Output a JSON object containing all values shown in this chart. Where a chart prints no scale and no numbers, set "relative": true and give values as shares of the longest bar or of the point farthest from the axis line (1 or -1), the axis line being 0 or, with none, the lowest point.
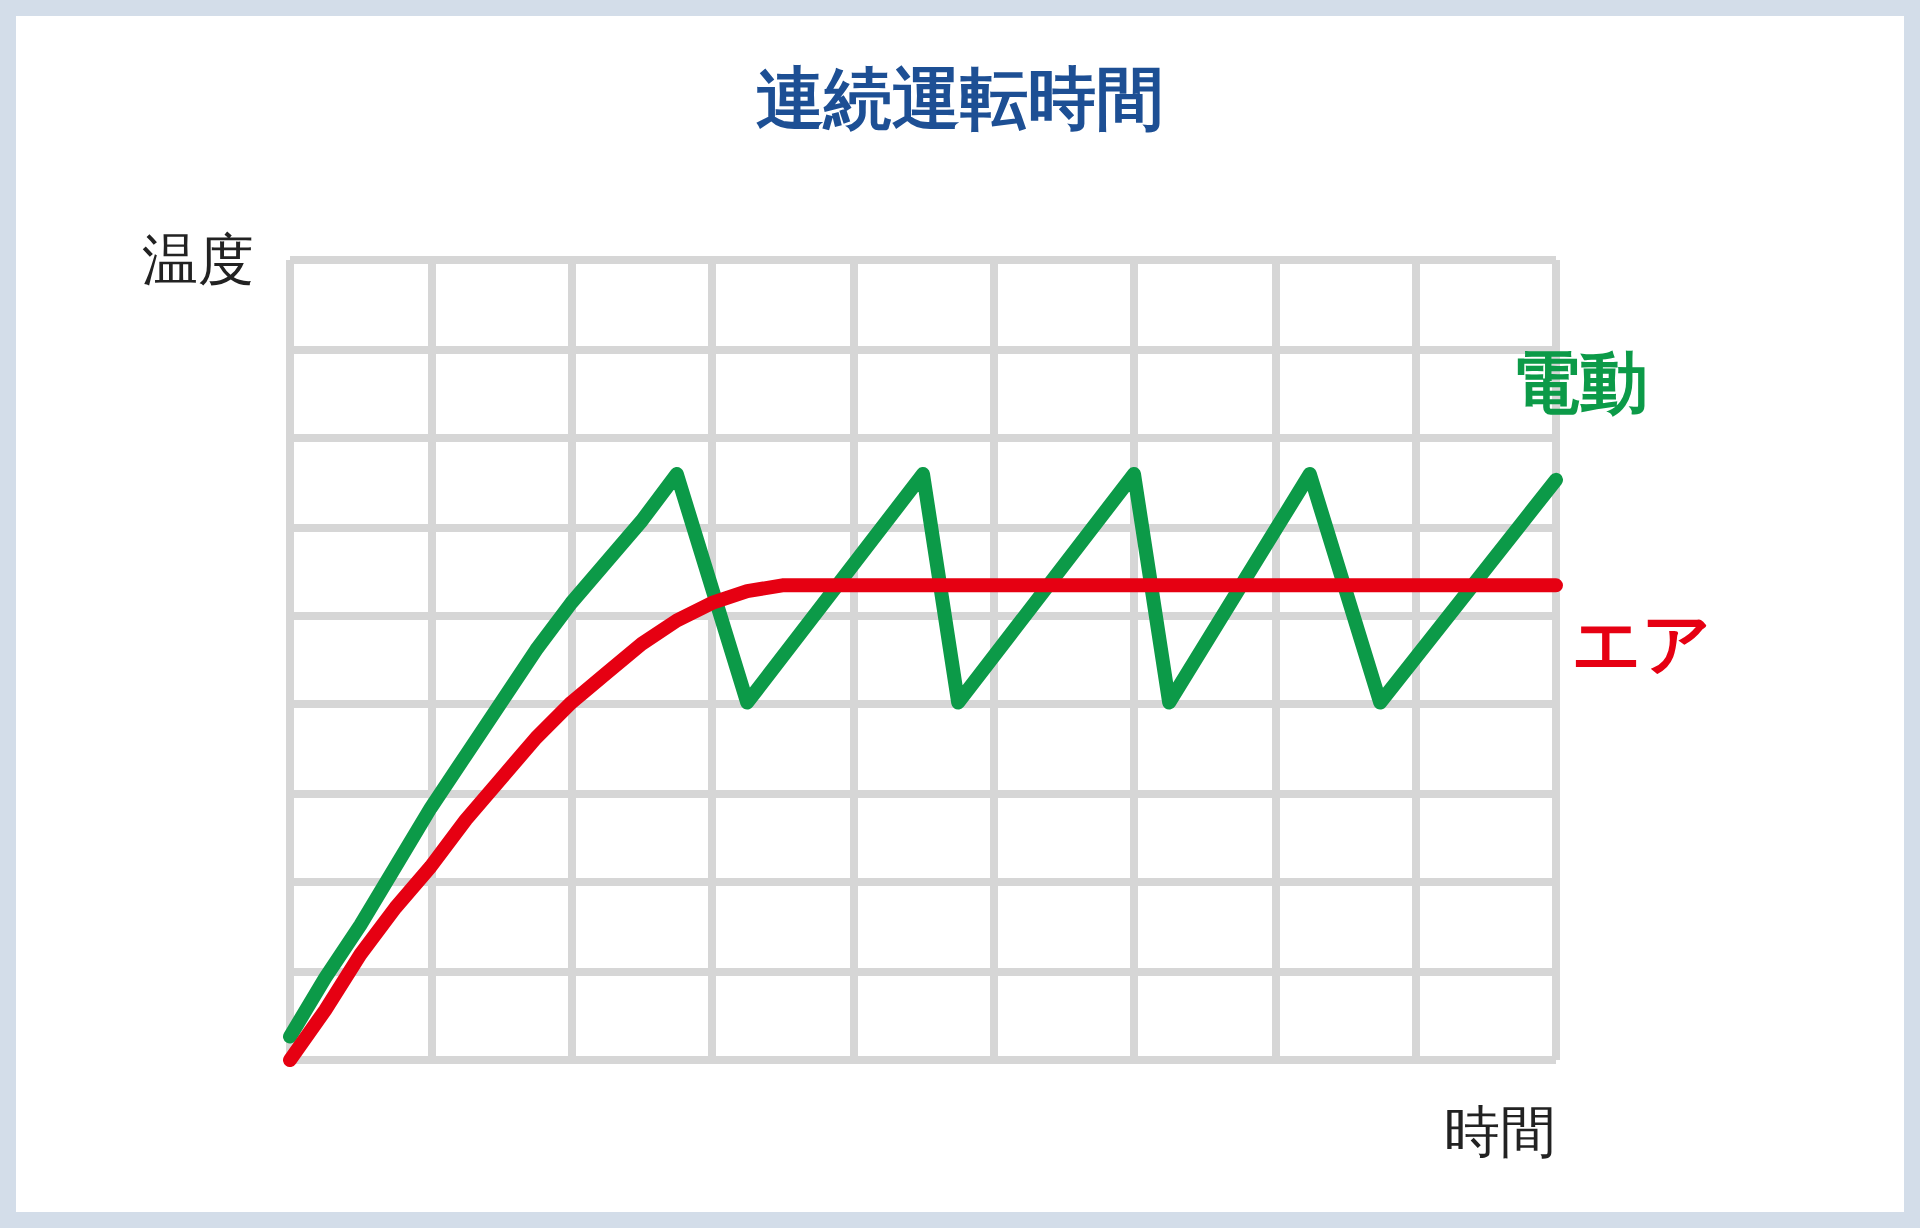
{
  "chart_data": {
    "type": "line",
    "title": "連続運転時間",
    "xlabel": "時間",
    "ylabel": "温度",
    "relative": true,
    "grid": true,
    "legend": false,
    "marker": "none",
    "line_style": "solid",
    "categories": [
      null,
      null,
      null,
      null,
      null,
      null,
      null,
      null,
      null,
      null,
      null,
      null,
      null,
      null,
      null,
      null,
      null,
      null,
      null,
      null,
      null,
      null,
      null,
      null,
      null,
      null,
      null,
      null,
      null,
      null,
      null,
      null,
      null,
      null,
      null,
      null,
      null
    ],
    "series": [
      {
        "name": "電動",
        "color": "#0c9a48",
        "values": [
          0.04,
          0.14,
          0.23,
          0.33,
          0.43,
          0.52,
          0.61,
          0.7,
          0.78,
          0.85,
          0.92,
          1,
          null,
          0.61,
          null,
          null,
          null,
          null,
          1,
          0.61,
          null,
          null,
          null,
          null,
          1,
          0.61,
          null,
          null,
          null,
          1,
          null,
          0.61,
          null,
          null,
          null,
          null,
          0.99
        ]
      },
      {
        "name": "エア",
        "color": "#e60012",
        "values": [
          0,
          0.085,
          0.18,
          0.26,
          0.33,
          0.41,
          0.48,
          0.55,
          0.61,
          0.66,
          0.71,
          0.75,
          0.78,
          0.8,
          0.81,
          0.81,
          null,
          null,
          null,
          null,
          null,
          null,
          null,
          null,
          null,
          null,
          null,
          null,
          null,
          null,
          null,
          null,
          null,
          null,
          null,
          null,
          0.81
        ]
      }
    ]
  }
}
